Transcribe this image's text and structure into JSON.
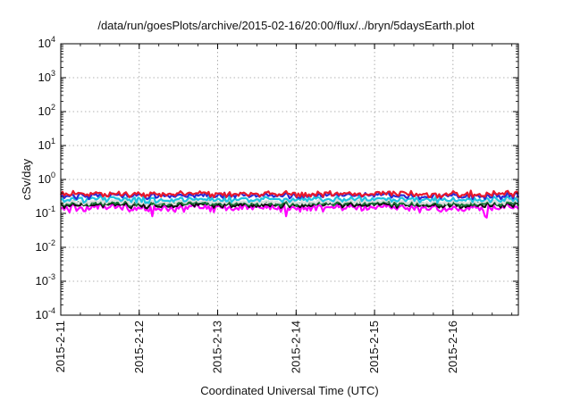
{
  "chart_data": {
    "type": "line",
    "title": "/data/run/goesPlots/archive/2015-02-16/20:00/flux/../bryn/5daysEarth.plot",
    "xlabel": "Coordinated Universal Time (UTC)",
    "ylabel": "cSv/day",
    "yscale": "log",
    "ylim": [
      0.0001,
      10000
    ],
    "y_ticks": [
      {
        "base": "10",
        "exp": "-4",
        "value": 0.0001
      },
      {
        "base": "10",
        "exp": "-3",
        "value": 0.001
      },
      {
        "base": "10",
        "exp": "-2",
        "value": 0.01
      },
      {
        "base": "10",
        "exp": "-1",
        "value": 0.1
      },
      {
        "base": "10",
        "exp": "0",
        "value": 1
      },
      {
        "base": "10",
        "exp": "1",
        "value": 10
      },
      {
        "base": "10",
        "exp": "2",
        "value": 100
      },
      {
        "base": "10",
        "exp": "3",
        "value": 1000
      },
      {
        "base": "10",
        "exp": "4",
        "value": 10000
      }
    ],
    "xlim": [
      "2015-02-11",
      "2015-02-16 20:00"
    ],
    "x_ticks": [
      "2015-2-11",
      "2015-2-12",
      "2015-2-13",
      "2015-2-14",
      "2015-2-15",
      "2015-2-16"
    ],
    "grid": true,
    "grid_style": "dotted",
    "series": [
      {
        "color": "#e8192c",
        "level": 0.38,
        "spread": 0.12
      },
      {
        "color": "#2b2bd6",
        "level": 0.34,
        "spread": 0.11
      },
      {
        "color": "#1ec3e0",
        "level": 0.26,
        "spread": 0.08
      },
      {
        "color": "#dddddd",
        "level": 0.22,
        "spread": 0.06
      },
      {
        "color": "#1a7a3a",
        "level": 0.2,
        "spread": 0.05
      },
      {
        "color": "#111111",
        "level": 0.18,
        "spread": 0.05
      },
      {
        "color": "#ff00ff",
        "level": 0.15,
        "spread": 0.06
      }
    ]
  }
}
